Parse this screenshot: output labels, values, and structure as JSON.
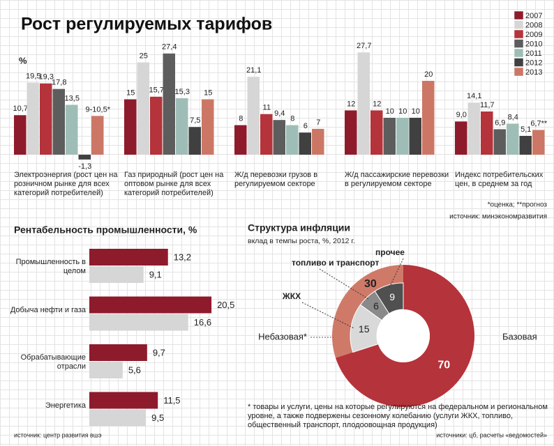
{
  "chart_data": [
    {
      "type": "bar",
      "title": "Рост регулируемых тарифов",
      "unit": "%",
      "categories": [
        "Электроэнергия (рост цен на розничном рынке для всех категорий потребителей)",
        "Газ природный (рост цен на оптовом рынке для всех категорий потребителей)",
        "Ж/д перевозки грузов в регулируемом секторе",
        "Ж/д пассажирские перевозки в регулируемом секторе",
        "Индекс потребительских цен, в среднем за год"
      ],
      "series": [
        {
          "name": "2007",
          "color": "#8e1b2c",
          "values": [
            10.7,
            15,
            8,
            12,
            9.0
          ],
          "value_labels": [
            "10,7",
            "15",
            "8",
            "12",
            "9,0"
          ]
        },
        {
          "name": "2008",
          "color": "#d6d6d6",
          "values": [
            19.5,
            25,
            21.1,
            27.7,
            14.1
          ],
          "value_labels": [
            "19,5",
            "25",
            "21,1",
            "27,7",
            "14,1"
          ]
        },
        {
          "name": "2009",
          "color": "#b5333a",
          "values": [
            19.3,
            15.7,
            11,
            12,
            11.7
          ],
          "value_labels": [
            "19,3",
            "15,7",
            "11",
            "12",
            "11,7"
          ]
        },
        {
          "name": "2010",
          "color": "#5d5d5d",
          "values": [
            17.8,
            27.4,
            9.4,
            10,
            6.9
          ],
          "value_labels": [
            "17,8",
            "27,4",
            "9,4",
            "10",
            "6,9"
          ]
        },
        {
          "name": "2011",
          "color": "#9fbdb7",
          "values": [
            13.5,
            15.3,
            8,
            10,
            8.4
          ],
          "value_labels": [
            "13,5",
            "15,3",
            "8",
            "10",
            "8,4"
          ]
        },
        {
          "name": "2012",
          "color": "#404040",
          "values": [
            -1.3,
            7.5,
            6,
            10,
            5.1
          ],
          "value_labels": [
            "-1,3",
            "7,5",
            "6",
            "10",
            "5,1"
          ]
        },
        {
          "name": "2013",
          "color": "#cc7766",
          "values": [
            10.5,
            15,
            7,
            20,
            6.7
          ],
          "value_labels": [
            "9-10,5*",
            "15",
            "7",
            "20",
            "6,7**"
          ]
        }
      ],
      "ylim": [
        -2,
        30
      ],
      "notes": [
        "*оценка; **прогноз",
        "источник: минэкономразвития"
      ]
    },
    {
      "type": "hbar",
      "title": "Рентабельность промышленности, %",
      "categories": [
        "Промышленность в целом",
        "Добыча нефти и газа",
        "Обрабатывающие отрасли",
        "Энергетика"
      ],
      "series": [
        {
          "color": "#8e1b2c",
          "values": [
            13.2,
            20.5,
            9.7,
            11.5
          ],
          "value_labels": [
            "13,2",
            "20,5",
            "9,7",
            "11,5"
          ]
        },
        {
          "color": "#d6d6d6",
          "values": [
            9.1,
            16.6,
            5.6,
            9.5
          ],
          "value_labels": [
            "9,1",
            "16,6",
            "5,6",
            "9,5"
          ]
        }
      ],
      "xlim": [
        0,
        25
      ],
      "source": "источник: центр развития вшэ"
    },
    {
      "type": "donut",
      "title": "Структура инфляции",
      "subtitle": "вклад в темпы роста, %, 2012 г.",
      "categories": [
        "Базовая",
        "Небазовая*"
      ],
      "values": [
        70,
        30
      ],
      "colors": [
        "#b5333a",
        "#cf7a68"
      ],
      "breakdown": {
        "categories": [
          "ЖКХ",
          "топливо и транспорт",
          "прочее"
        ],
        "values": [
          15,
          6,
          9
        ],
        "colors": [
          "#d9d9d9",
          "#8a8a8a",
          "#505050"
        ]
      },
      "footnote": "* товары и услуги, цены на которые регулируются на федеральном и региональном уровне, а также подвержены сезонному колебанию (услуги ЖКХ, топливо, общественный транспорт, плодоовощная продукция)",
      "source": "источники: цб, расчеты «ведомостей»"
    }
  ]
}
